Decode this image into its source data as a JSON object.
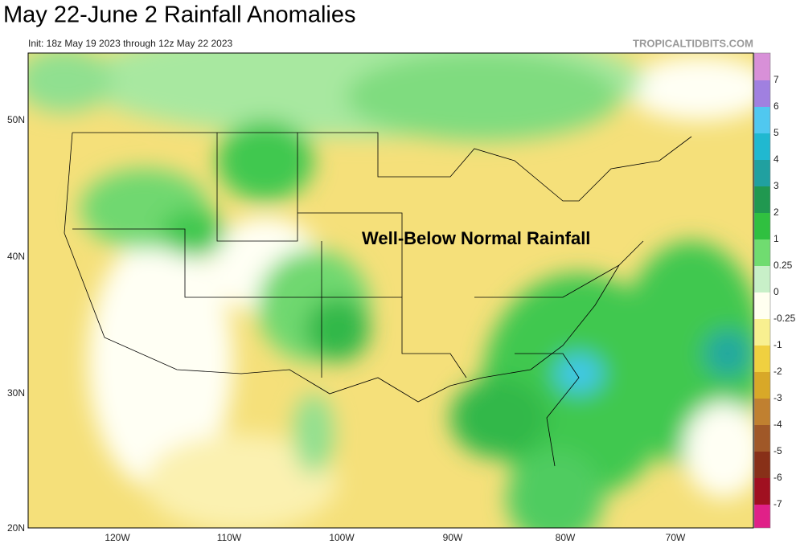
{
  "header": {
    "title": "May 22-June 2 Rainfall Anomalies",
    "subtitle": "Init: 18z May 19 2023 through 12z May 22 2023",
    "credit": "TROPICALTIDBITS.COM"
  },
  "map": {
    "annotation": "Well-Below Normal Rainfall",
    "lat_labels": [
      "50N",
      "40N",
      "30N",
      "20N"
    ],
    "lon_labels": [
      "120W",
      "110W",
      "100W",
      "90W",
      "80W",
      "70W"
    ]
  },
  "colorbar": {
    "labels": [
      "7",
      "6",
      "5",
      "4",
      "3",
      "2",
      "1",
      "0.25",
      "0",
      "-0.25",
      "-1",
      "-2",
      "-3",
      "-4",
      "-5",
      "-6",
      "-7"
    ]
  }
}
